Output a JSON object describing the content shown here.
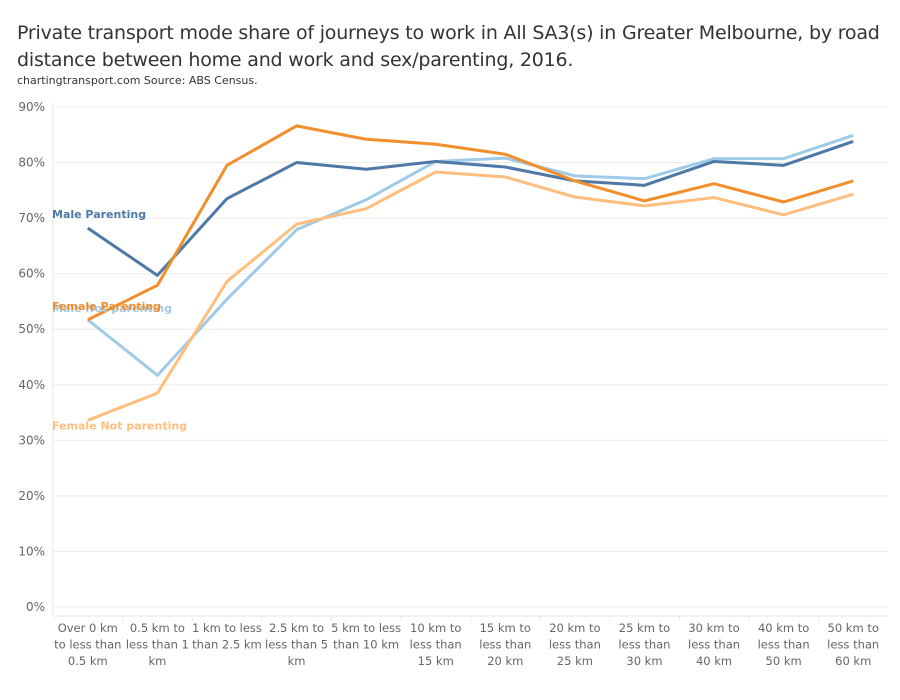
{
  "chart_data": {
    "type": "line",
    "title": "Private transport mode share of journeys to work in All SA3(s) in Greater Melbourne, by road distance between home and work and sex/parenting, 2016.",
    "subtitle": "chartingtransport.com Source: ABS Census.",
    "xlabel": "",
    "ylabel": "",
    "ylim": [
      0,
      90
    ],
    "yticks": [
      0,
      10,
      20,
      30,
      40,
      50,
      60,
      70,
      80,
      90
    ],
    "ytick_labels": [
      "0%",
      "10%",
      "20%",
      "30%",
      "40%",
      "50%",
      "60%",
      "70%",
      "80%",
      "90%"
    ],
    "grid": true,
    "categories": [
      [
        "Over 0 km",
        "to less than",
        "0.5 km"
      ],
      [
        "0.5 km to",
        "less than 1",
        "km"
      ],
      [
        "1 km to less",
        "than 2.5 km"
      ],
      [
        "2.5 km to",
        "less than 5",
        "km"
      ],
      [
        "5 km to less",
        "than 10 km"
      ],
      [
        "10 km to",
        "less than",
        "15 km"
      ],
      [
        "15 km to",
        "less than",
        "20 km"
      ],
      [
        "20 km to",
        "less than",
        "25 km"
      ],
      [
        "25 km to",
        "less than",
        "30 km"
      ],
      [
        "30 km to",
        "less than",
        "40 km"
      ],
      [
        "40 km to",
        "less than",
        "50 km"
      ],
      [
        "50 km to",
        "less than",
        "60 km"
      ]
    ],
    "series": [
      {
        "name": "Male Not parenting",
        "color": "#a0cbe8",
        "values": [
          51.7,
          41.7,
          55.4,
          67.9,
          73.3,
          80.2,
          80.8,
          77.6,
          77.1,
          80.7,
          80.7,
          84.9
        ]
      },
      {
        "name": "Female Not parenting",
        "color": "#ffbe7d",
        "values": [
          33.6,
          38.5,
          58.6,
          68.9,
          71.7,
          78.3,
          77.4,
          73.8,
          72.2,
          73.7,
          70.6,
          74.3
        ]
      },
      {
        "name": "Male Parenting",
        "color": "#4e79a7",
        "values": [
          68.2,
          59.7,
          73.5,
          80.0,
          78.8,
          80.2,
          79.2,
          76.7,
          75.9,
          80.2,
          79.5,
          83.8
        ]
      },
      {
        "name": "Female Parenting",
        "color": "#f28e2b",
        "values": [
          51.7,
          57.9,
          79.5,
          86.6,
          84.2,
          83.3,
          81.5,
          76.7,
          73.1,
          76.2,
          72.9,
          76.7
        ]
      }
    ],
    "legend": "inline-labels-left"
  }
}
